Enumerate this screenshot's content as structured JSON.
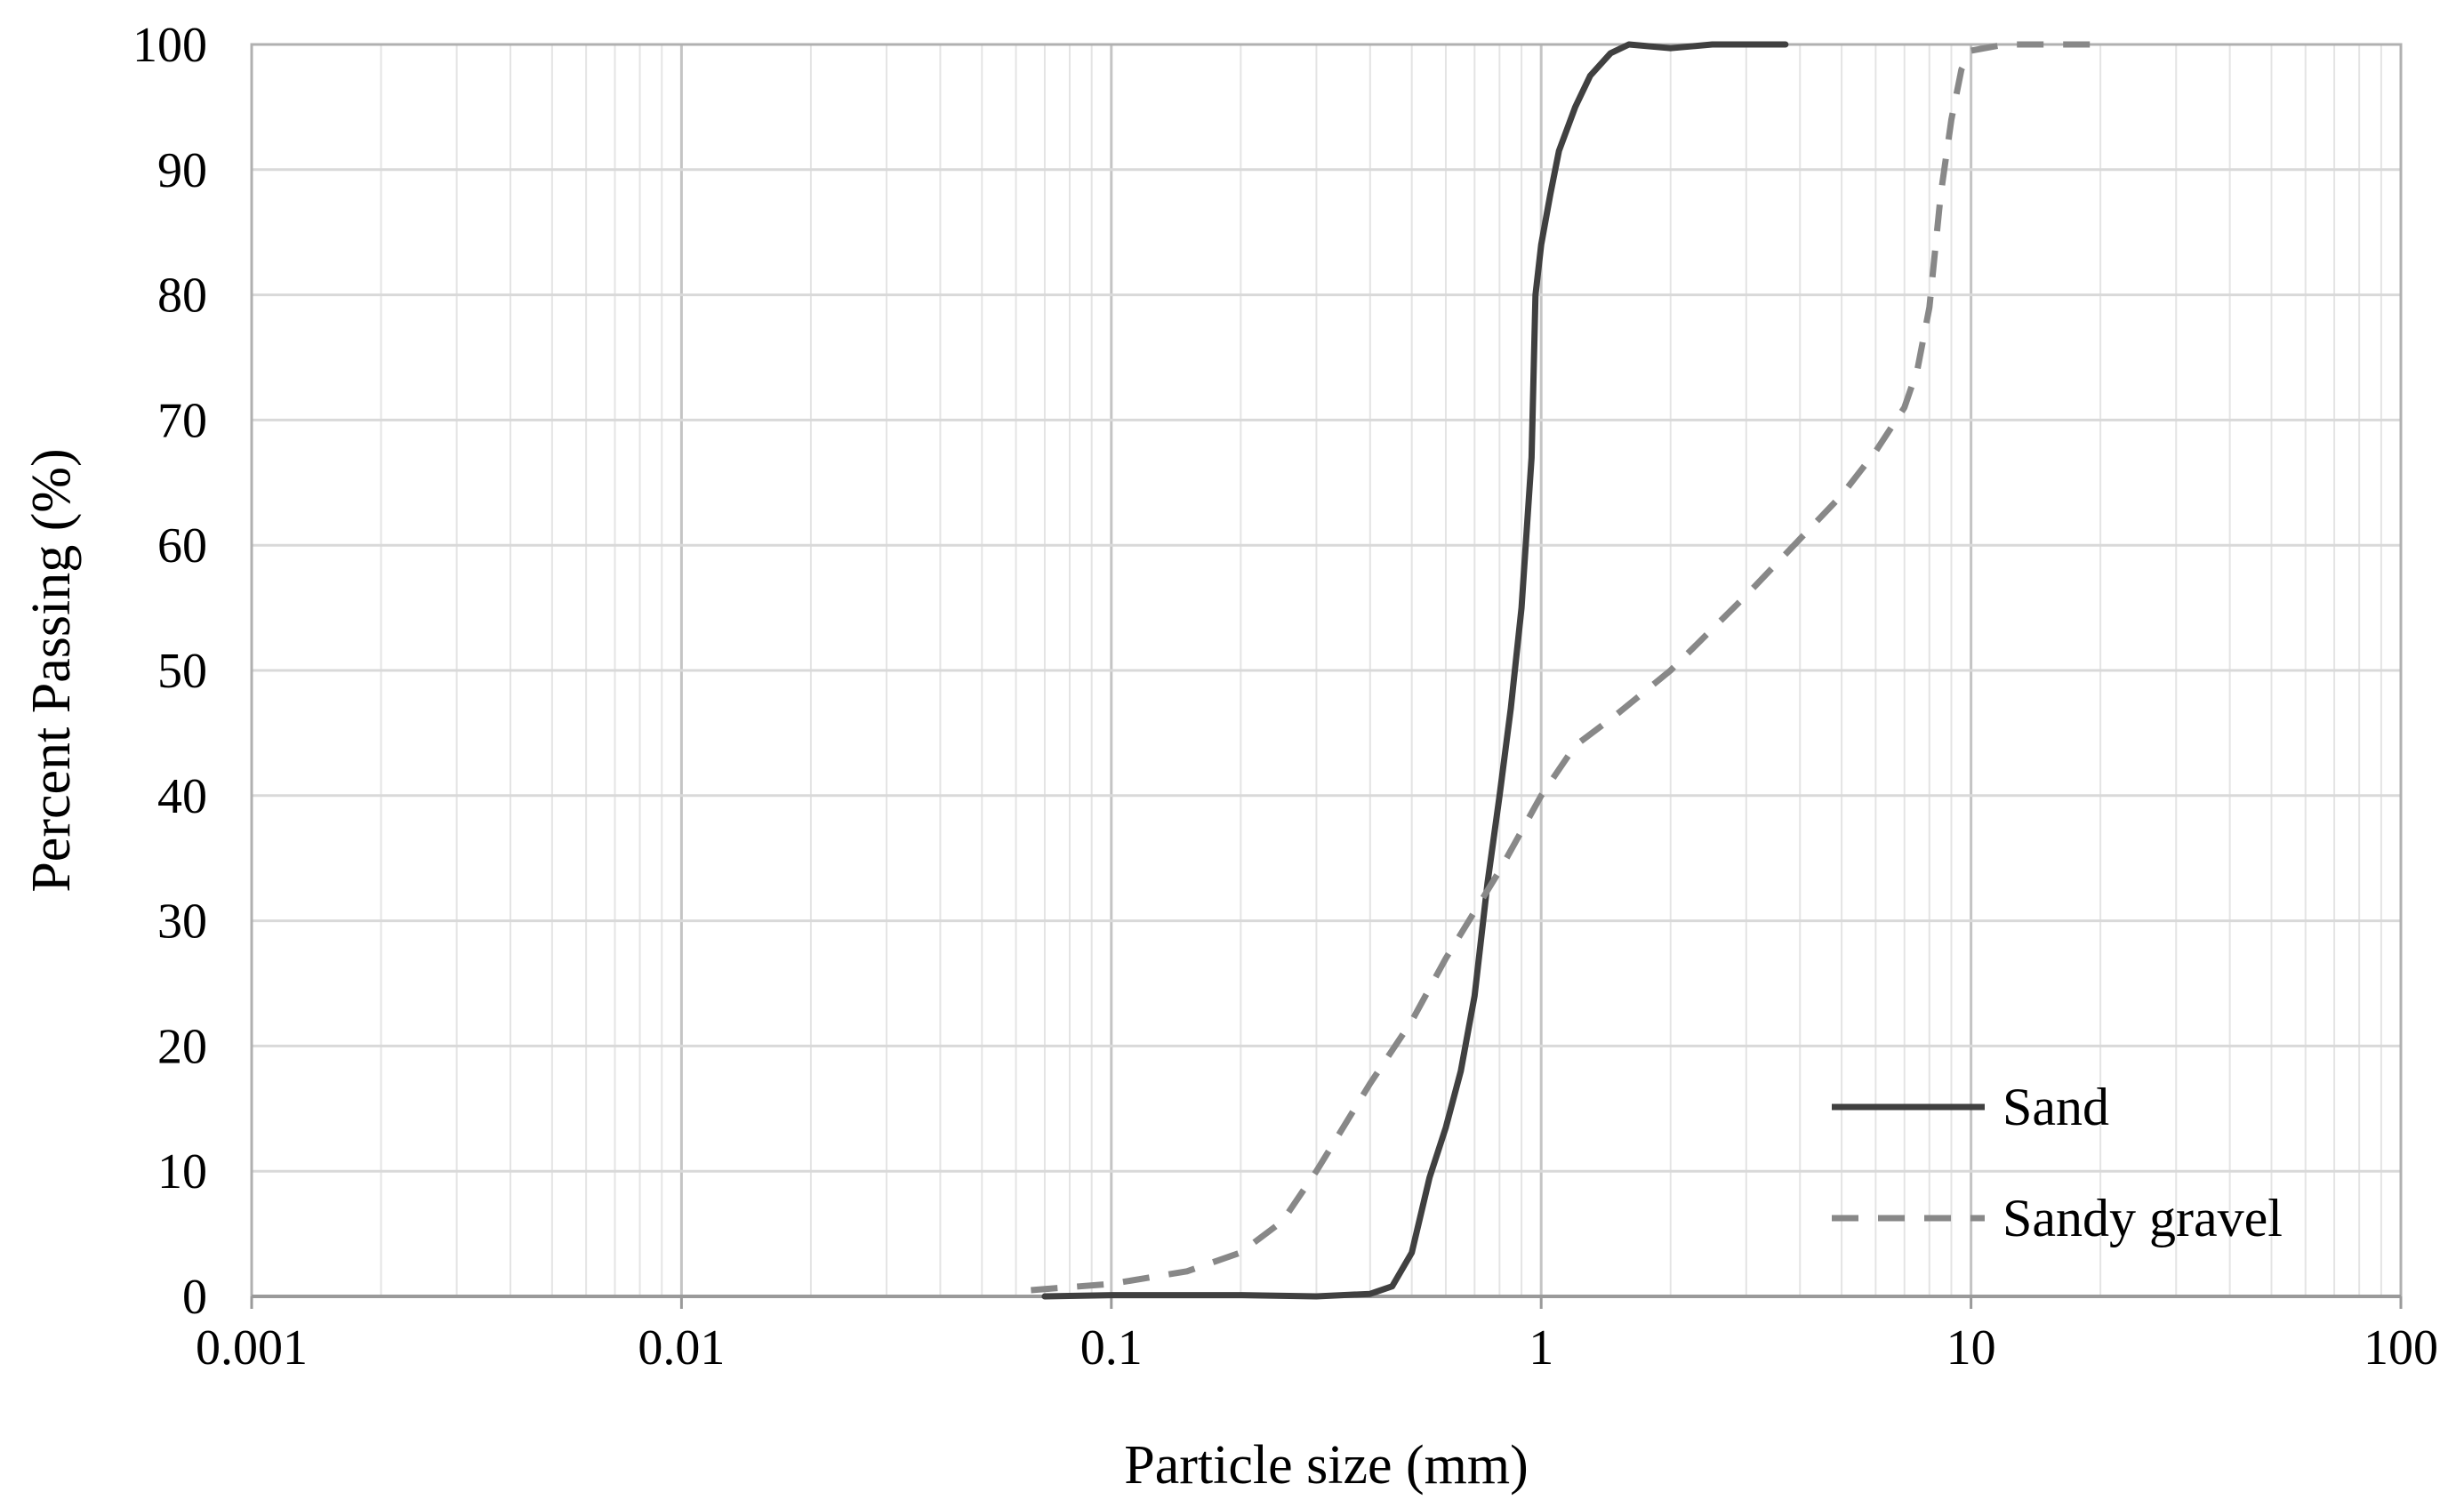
{
  "chart_data": {
    "type": "line",
    "xlabel": "Particle size (mm)",
    "ylabel": "Percent Passing (%)",
    "xscale": "log",
    "xlim": [
      0.001,
      100
    ],
    "ylim": [
      0,
      100
    ],
    "x_ticks": [
      "0.001",
      "0.01",
      "0.1",
      "1",
      "10",
      "100"
    ],
    "y_ticks": [
      "0",
      "10",
      "20",
      "30",
      "40",
      "50",
      "60",
      "70",
      "80",
      "90",
      "100"
    ],
    "grid": true,
    "legend": "bottom-right",
    "series": [
      {
        "name": "Sand",
        "color": "#404040",
        "dash": "solid",
        "points": [
          [
            0.07,
            0.0
          ],
          [
            0.1,
            0.1
          ],
          [
            0.2,
            0.1
          ],
          [
            0.3,
            0.0
          ],
          [
            0.4,
            0.2
          ],
          [
            0.45,
            0.8
          ],
          [
            0.5,
            3.5
          ],
          [
            0.55,
            9.5
          ],
          [
            0.6,
            13.5
          ],
          [
            0.65,
            18.0
          ],
          [
            0.7,
            24.0
          ],
          [
            0.75,
            33.0
          ],
          [
            0.8,
            40.0
          ],
          [
            0.85,
            47.0
          ],
          [
            0.9,
            55.0
          ],
          [
            0.95,
            67.0
          ],
          [
            0.97,
            80.0
          ],
          [
            1.0,
            84.0
          ],
          [
            1.05,
            88.0
          ],
          [
            1.1,
            91.5
          ],
          [
            1.2,
            95.0
          ],
          [
            1.3,
            97.5
          ],
          [
            1.45,
            99.3
          ],
          [
            1.6,
            100.0
          ],
          [
            2.0,
            99.7
          ],
          [
            2.5,
            100.0
          ],
          [
            3.7,
            100.0
          ]
        ]
      },
      {
        "name": "Sandy gravel",
        "color": "#888888",
        "dash": "dashed",
        "points": [
          [
            0.065,
            0.5
          ],
          [
            0.1,
            1.0
          ],
          [
            0.15,
            2.0
          ],
          [
            0.2,
            3.5
          ],
          [
            0.25,
            6.0
          ],
          [
            0.3,
            10.0
          ],
          [
            0.4,
            17.0
          ],
          [
            0.5,
            22.0
          ],
          [
            0.6,
            27.0
          ],
          [
            0.8,
            34.0
          ],
          [
            1.0,
            40.0
          ],
          [
            1.2,
            44.0
          ],
          [
            1.5,
            46.5
          ],
          [
            2.0,
            50.0
          ],
          [
            3.0,
            56.0
          ],
          [
            4.0,
            60.5
          ],
          [
            5.0,
            64.0
          ],
          [
            6.0,
            67.5
          ],
          [
            7.0,
            71.0
          ],
          [
            7.5,
            74.0
          ],
          [
            8.0,
            79.0
          ],
          [
            8.5,
            88.0
          ],
          [
            9.0,
            94.0
          ],
          [
            9.5,
            98.0
          ],
          [
            10.0,
            99.5
          ],
          [
            12.0,
            100.0
          ],
          [
            20.0,
            100.0
          ]
        ]
      }
    ]
  }
}
